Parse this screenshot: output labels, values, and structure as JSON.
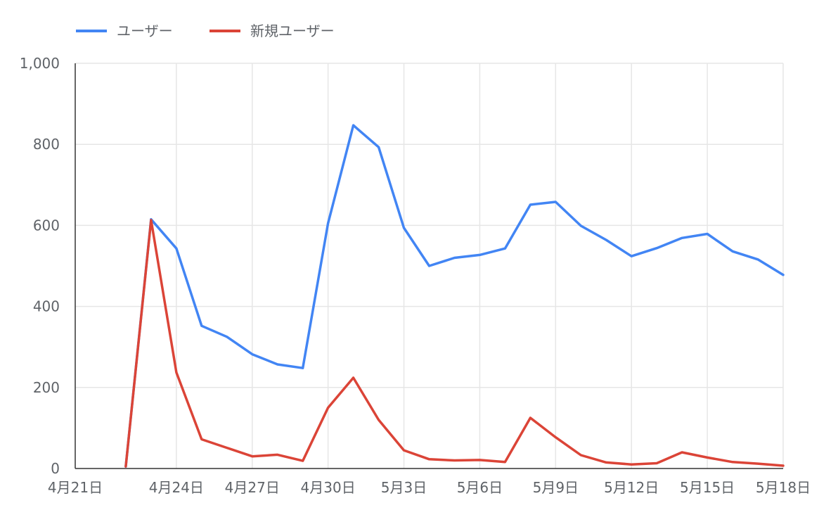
{
  "chart_data": {
    "type": "line",
    "title": "",
    "xlabel": "",
    "ylabel": "",
    "ylim": [
      0,
      1000
    ],
    "yticks": [
      "0",
      "200",
      "400",
      "600",
      "800",
      "1,000"
    ],
    "xtick_labels": [
      "4月21日",
      "4月24日",
      "4月27日",
      "4月30日",
      "5月3日",
      "5月6日",
      "5月9日",
      "5月12日",
      "5月15日",
      "5月18日"
    ],
    "x": [
      "4月21日",
      "4月22日",
      "4月23日",
      "4月24日",
      "4月25日",
      "4月26日",
      "4月27日",
      "4月28日",
      "4月29日",
      "4月30日",
      "5月1日",
      "5月2日",
      "5月3日",
      "5月4日",
      "5月5日",
      "5月6日",
      "5月7日",
      "5月8日",
      "5月9日",
      "5月10日",
      "5月11日",
      "5月12日",
      "5月13日",
      "5月14日",
      "5月15日",
      "5月16日",
      "5月17日",
      "5月18日"
    ],
    "grid": true,
    "legend_position": "top-left",
    "series": [
      {
        "name": "ユーザー",
        "color": "#4285f4",
        "values": [
          null,
          5,
          615,
          543,
          352,
          325,
          282,
          257,
          248,
          605,
          847,
          793,
          594,
          500,
          520,
          527,
          543,
          651,
          658,
          599,
          564,
          524,
          544,
          569,
          579,
          536,
          516,
          478
        ]
      },
      {
        "name": "新規ユーザー",
        "color": "#db4437",
        "values": [
          null,
          5,
          613,
          237,
          72,
          51,
          30,
          34,
          19,
          150,
          224,
          120,
          45,
          23,
          20,
          21,
          16,
          125,
          77,
          33,
          15,
          10,
          13,
          40,
          27,
          16,
          12,
          7
        ]
      }
    ]
  }
}
